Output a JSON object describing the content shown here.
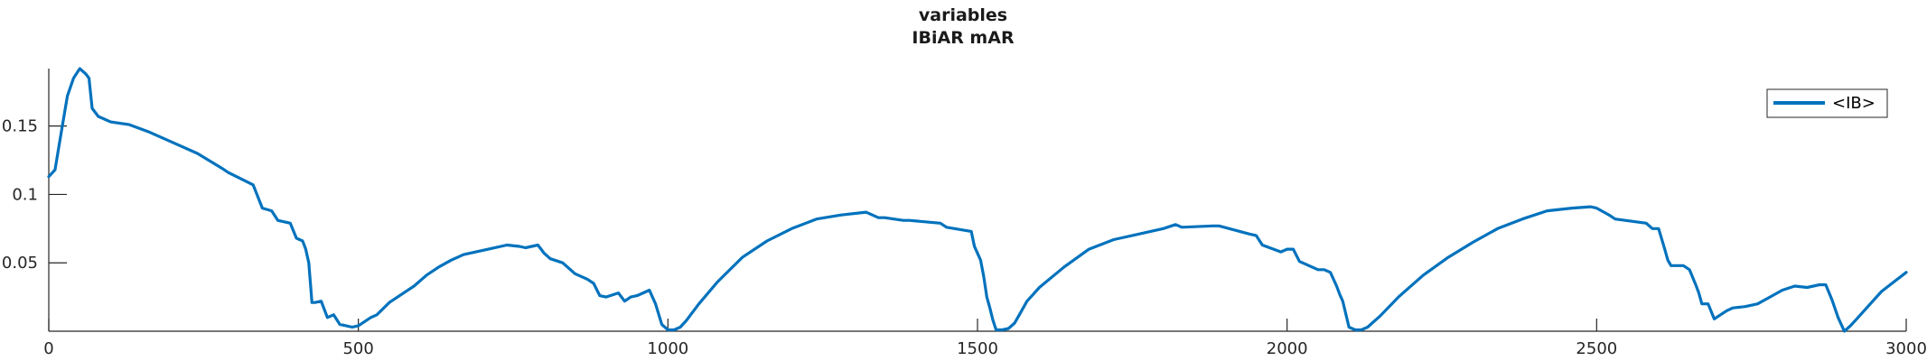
{
  "chart_data": {
    "type": "line",
    "title": "variables",
    "subtitle": "IBiAR mAR",
    "xlabel": "",
    "ylabel": "",
    "xlim": [
      0,
      3000
    ],
    "ylim": [
      0,
      0.192
    ],
    "x_ticks": [
      0,
      500,
      1000,
      1500,
      2000,
      2500,
      3000
    ],
    "x_tick_labels": [
      "0",
      "500",
      "1000",
      "1500",
      "2000",
      "2500",
      "3000"
    ],
    "y_ticks": [
      0.05,
      0.1,
      0.15
    ],
    "y_tick_labels": [
      "0.05",
      "0.1",
      "0.15"
    ],
    "grid": false,
    "legend_position": "top-right",
    "series": [
      {
        "name": "<IB>",
        "color": "#0072BD",
        "x": [
          0,
          10,
          20,
          30,
          40,
          50,
          60,
          65,
          70,
          80,
          100,
          130,
          160,
          200,
          240,
          280,
          290,
          330,
          345,
          360,
          370,
          390,
          400,
          410,
          415,
          420,
          425,
          430,
          440,
          450,
          460,
          470,
          480,
          490,
          500,
          510,
          520,
          530,
          550,
          570,
          590,
          610,
          630,
          650,
          670,
          690,
          710,
          740,
          760,
          770,
          790,
          800,
          810,
          830,
          850,
          870,
          880,
          890,
          900,
          920,
          930,
          940,
          950,
          960,
          970,
          980,
          990,
          1000,
          1010,
          1020,
          1030,
          1050,
          1080,
          1120,
          1160,
          1200,
          1240,
          1280,
          1320,
          1340,
          1350,
          1380,
          1390,
          1440,
          1450,
          1490,
          1495,
          1505,
          1510,
          1515,
          1520,
          1525,
          1530,
          1540,
          1550,
          1560,
          1570,
          1580,
          1600,
          1640,
          1680,
          1720,
          1760,
          1800,
          1820,
          1830,
          1880,
          1890,
          1940,
          1950,
          1960,
          1990,
          2000,
          2010,
          2020,
          2050,
          2060,
          2070,
          2080,
          2085,
          2090,
          2100,
          2110,
          2120,
          2130,
          2150,
          2180,
          2220,
          2260,
          2300,
          2340,
          2380,
          2420,
          2460,
          2490,
          2500,
          2520,
          2530,
          2580,
          2590,
          2600,
          2610,
          2615,
          2620,
          2640,
          2650,
          2660,
          2665,
          2670,
          2680,
          2690,
          2700,
          2710,
          2720,
          2740,
          2760,
          2780,
          2800,
          2820,
          2840,
          2860,
          2870,
          2880,
          2890,
          2900,
          2910,
          2920,
          2940,
          2960,
          2980,
          3000
        ],
        "y": [
          0.113,
          0.118,
          0.145,
          0.172,
          0.185,
          0.192,
          0.188,
          0.185,
          0.163,
          0.157,
          0.153,
          0.151,
          0.146,
          0.138,
          0.13,
          0.119,
          0.116,
          0.107,
          0.09,
          0.088,
          0.081,
          0.079,
          0.068,
          0.066,
          0.06,
          0.05,
          0.021,
          0.021,
          0.022,
          0.01,
          0.012,
          0.005,
          0.004,
          0.003,
          0.004,
          0.007,
          0.01,
          0.012,
          0.021,
          0.027,
          0.033,
          0.041,
          0.047,
          0.052,
          0.056,
          0.058,
          0.06,
          0.063,
          0.062,
          0.061,
          0.063,
          0.057,
          0.053,
          0.05,
          0.042,
          0.038,
          0.035,
          0.026,
          0.025,
          0.028,
          0.022,
          0.025,
          0.026,
          0.028,
          0.03,
          0.02,
          0.005,
          0.001,
          0.001,
          0.003,
          0.008,
          0.02,
          0.036,
          0.054,
          0.066,
          0.075,
          0.082,
          0.085,
          0.087,
          0.083,
          0.083,
          0.081,
          0.081,
          0.079,
          0.076,
          0.073,
          0.062,
          0.052,
          0.04,
          0.025,
          0.017,
          0.008,
          0.001,
          0.001,
          0.002,
          0.006,
          0.014,
          0.022,
          0.032,
          0.047,
          0.06,
          0.067,
          0.071,
          0.075,
          0.078,
          0.076,
          0.077,
          0.077,
          0.071,
          0.07,
          0.063,
          0.058,
          0.06,
          0.06,
          0.051,
          0.045,
          0.045,
          0.043,
          0.033,
          0.027,
          0.022,
          0.003,
          0.001,
          0.001,
          0.003,
          0.011,
          0.025,
          0.041,
          0.054,
          0.065,
          0.075,
          0.082,
          0.088,
          0.09,
          0.091,
          0.09,
          0.085,
          0.082,
          0.079,
          0.075,
          0.075,
          0.06,
          0.052,
          0.048,
          0.048,
          0.045,
          0.034,
          0.028,
          0.02,
          0.02,
          0.009,
          0.012,
          0.015,
          0.017,
          0.018,
          0.02,
          0.025,
          0.03,
          0.033,
          0.032,
          0.034,
          0.034,
          0.023,
          0.01,
          0.0,
          0.004,
          0.009,
          0.019,
          0.029,
          0.036,
          0.043
        ]
      }
    ]
  }
}
